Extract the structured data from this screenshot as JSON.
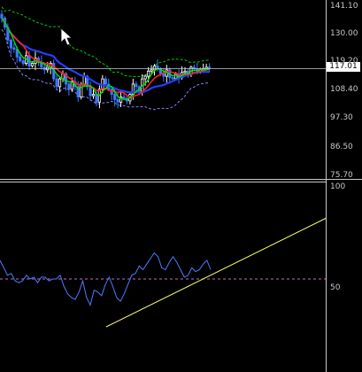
{
  "colors": {
    "background": "#000000",
    "bullish_candle": "#ffffff",
    "bearish_candle": "#3c78ff",
    "ma_fast": "#00e000",
    "ma_mid": "#ff2020",
    "ma_slow": "#2040ff",
    "bollinger_upper": "#00cc00",
    "bollinger_lower": "#8080ff",
    "rsi_line": "#4a7dff",
    "trendline": "#ffff66",
    "level_line": "#cc66cc"
  },
  "price_panel": {
    "axis_labels": [
      "141.10",
      "130.00",
      "119.20",
      "108.40",
      "97.30",
      "86.50",
      "75.70"
    ],
    "current_price_label": "117.01"
  },
  "indicator_panel": {
    "axis_labels": [
      "100",
      "50"
    ]
  },
  "chart_data": [
    {
      "type": "candlestick",
      "ylim": [
        75.7,
        141.1
      ],
      "yticks": [
        141.1,
        130.0,
        119.2,
        108.4,
        97.3,
        86.5,
        75.7
      ],
      "current_price": 117.01,
      "closes": [
        136.5,
        133,
        128,
        125,
        124.5,
        121.5,
        120,
        119,
        122,
        118,
        119,
        121,
        119.5,
        117.5,
        116.5,
        117.5,
        119,
        113,
        110,
        113,
        115,
        111,
        109,
        112,
        110,
        106,
        111,
        114,
        110,
        106.5,
        107,
        104,
        109,
        113,
        111,
        109,
        107,
        105,
        104,
        106,
        105.5,
        104.5,
        107,
        111,
        110,
        108,
        113,
        114,
        116,
        116.5,
        118,
        117,
        115,
        114,
        116.5,
        113.5,
        113,
        115,
        113.5,
        115.5,
        116,
        115,
        117.5,
        117,
        115.5,
        116.5,
        117,
        117.5,
        117.01
      ],
      "ma_fast_color": "green",
      "ma_mid_color": "red",
      "ma_slow_color": "blue"
    },
    {
      "type": "line",
      "ylim": [
        0,
        100
      ],
      "yticks": [
        100,
        50
      ],
      "level": 50,
      "values": [
        60,
        56,
        52,
        53,
        49,
        48,
        49,
        52,
        50,
        51,
        48,
        51,
        51,
        49,
        50,
        50,
        52,
        46,
        42,
        40,
        39,
        43,
        49,
        40,
        36,
        44,
        43,
        41,
        47,
        51,
        46,
        40,
        38,
        42,
        47,
        52,
        53,
        57,
        55,
        58,
        61,
        64,
        62,
        56,
        55,
        59,
        62,
        59,
        55,
        51,
        52,
        56,
        54,
        55,
        58,
        60,
        55
      ]
    }
  ]
}
